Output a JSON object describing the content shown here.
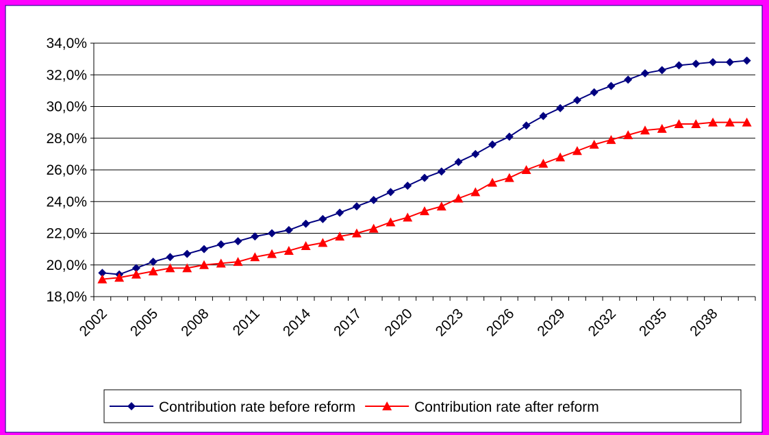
{
  "chart_data": {
    "type": "line",
    "categories": [
      "2002",
      null,
      null,
      "2005",
      null,
      null,
      "2008",
      null,
      null,
      "2011",
      null,
      null,
      "2014",
      null,
      null,
      "2017",
      null,
      null,
      "2020",
      null,
      null,
      "2023",
      null,
      null,
      "2026",
      null,
      null,
      "2029",
      null,
      null,
      "2032",
      null,
      null,
      "2035",
      null,
      null,
      "2038",
      null,
      null
    ],
    "series": [
      {
        "name": "Contribution rate before reform",
        "color": "#000080",
        "marker": "diamond",
        "values": [
          19.5,
          19.4,
          19.8,
          20.2,
          20.5,
          20.7,
          21.0,
          21.3,
          21.5,
          21.8,
          22.0,
          22.2,
          22.6,
          22.9,
          23.3,
          23.7,
          24.1,
          24.6,
          25.0,
          25.5,
          25.9,
          26.5,
          27.0,
          27.6,
          28.1,
          28.8,
          29.4,
          29.9,
          30.4,
          30.9,
          31.3,
          31.7,
          32.1,
          32.3,
          32.6,
          32.7,
          32.8,
          32.8,
          32.9
        ]
      },
      {
        "name": "Contribution rate after reform",
        "color": "#ff0000",
        "marker": "triangle",
        "values": [
          19.1,
          19.2,
          19.4,
          19.6,
          19.8,
          19.8,
          20.0,
          20.1,
          20.2,
          20.5,
          20.7,
          20.9,
          21.2,
          21.4,
          21.8,
          22.0,
          22.3,
          22.7,
          23.0,
          23.4,
          23.7,
          24.2,
          24.6,
          25.2,
          25.5,
          26.0,
          26.4,
          26.8,
          27.2,
          27.6,
          27.9,
          28.2,
          28.5,
          28.6,
          28.9,
          28.9,
          29.0,
          29.0,
          29.0
        ]
      }
    ],
    "ylim": [
      18,
      34
    ],
    "yticks": [
      {
        "value": 18,
        "label": "18,0%"
      },
      {
        "value": 20,
        "label": "20,0%"
      },
      {
        "value": 22,
        "label": "22,0%"
      },
      {
        "value": 24,
        "label": "24,0%"
      },
      {
        "value": 26,
        "label": "26,0%"
      },
      {
        "value": 28,
        "label": "28,0%"
      },
      {
        "value": 30,
        "label": "30,0%"
      },
      {
        "value": 32,
        "label": "32,0%"
      },
      {
        "value": 34,
        "label": "34,0%"
      }
    ],
    "grid": true,
    "legend": "bottom"
  }
}
